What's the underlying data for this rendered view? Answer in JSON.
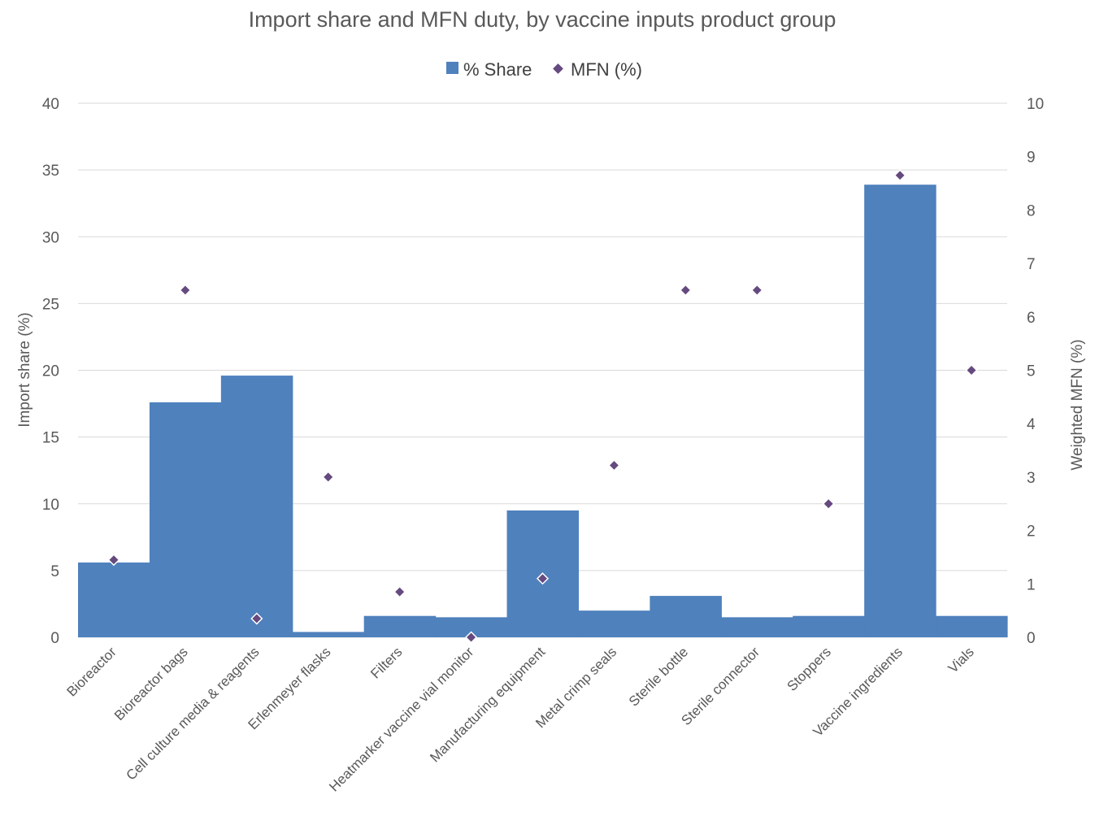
{
  "chart_data": {
    "type": "bar",
    "title": "Import share and MFN duty, by vaccine inputs product group",
    "ylabel": "Import share (%)",
    "y2label": "Weighted MFN (%)",
    "ylim": [
      0,
      40
    ],
    "y2lim": [
      0,
      10
    ],
    "yticks": [
      "0",
      "5",
      "10",
      "15",
      "20",
      "25",
      "30",
      "35",
      "40"
    ],
    "y2ticks": [
      "0",
      "1",
      "2",
      "3",
      "4",
      "5",
      "6",
      "7",
      "8",
      "9",
      "10"
    ],
    "grid": true,
    "legend_position": "top-center",
    "categories": [
      "Bioreactor",
      "Bioreactor bags",
      "Cell culture media & reagents",
      "Erlenmeyer flasks",
      "Filters",
      "Heatmarker vaccine vial monitor",
      "Manufacturing equipment",
      "Metal crimp seals",
      "Sterile bottle",
      "Sterile connector",
      "Stoppers",
      "Vaccine ingredients",
      "Vials"
    ],
    "series": [
      {
        "name": "% Share",
        "type": "bar",
        "axis": "left",
        "color": "#4F81BD",
        "values": [
          5.6,
          17.6,
          19.6,
          0.4,
          1.6,
          1.5,
          9.5,
          2.0,
          3.1,
          1.5,
          1.6,
          33.9,
          1.6
        ]
      },
      {
        "name": "MFN (%)",
        "type": "scatter",
        "axis": "right",
        "color": "#654A7F",
        "values": [
          1.45,
          6.5,
          0.35,
          3.0,
          0.85,
          0.0,
          1.1,
          3.22,
          6.5,
          6.5,
          2.5,
          8.65,
          5.0
        ]
      }
    ]
  }
}
